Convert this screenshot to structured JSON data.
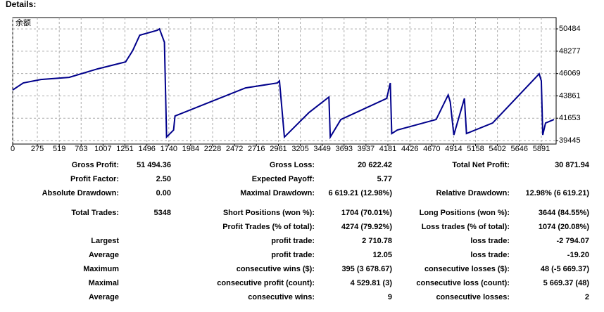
{
  "header": {
    "title": "Details:"
  },
  "chart_data": {
    "type": "line",
    "x": [
      0,
      118,
      315,
      629,
      944,
      1258,
      1337,
      1416,
      1612,
      1636,
      1691,
      1715,
      1793,
      1809,
      2202,
      2595,
      2949,
      2973,
      3028,
      3303,
      3524,
      3539,
      3657,
      4168,
      4208,
      4224,
      4286,
      4719,
      4853,
      4876,
      4916,
      5034,
      5057,
      5348,
      5867,
      5891,
      5907,
      5938,
      6032
    ],
    "series": [
      {
        "name": "余额",
        "color": "#00008b",
        "values": [
          44442,
          45136,
          45483,
          45691,
          46524,
          47217,
          48328,
          49855,
          50341,
          50480,
          49161,
          39792,
          40486,
          41874,
          43262,
          44650,
          45136,
          45344,
          39792,
          42221,
          43748,
          39792,
          41527,
          43609,
          45136,
          40139,
          40486,
          41527,
          43956,
          43262,
          40000,
          43609,
          40139,
          41180,
          46038,
          45344,
          40000,
          41180,
          41527
        ]
      }
    ],
    "xlim": [
      0,
      6056
    ],
    "ylim": [
      39100,
      51600
    ],
    "xticks": [
      0,
      275,
      519,
      763,
      1007,
      1251,
      1496,
      1740,
      1984,
      2228,
      2472,
      2716,
      2961,
      3205,
      3449,
      3693,
      3937,
      4181,
      4426,
      4670,
      4914,
      5158,
      5402,
      5646,
      5891
    ],
    "yticks": [
      39445,
      41653,
      43861,
      46069,
      48277,
      50484
    ],
    "grid": true
  },
  "table": {
    "rows": [
      [
        "Gross Profit:",
        "51 494.36",
        "Gross Loss:",
        "20 622.42",
        "Total Net Profit:",
        "30 871.94"
      ],
      [
        "Profit Factor:",
        "2.50",
        "Expected Payoff:",
        "5.77",
        null,
        null
      ],
      [
        "Absolute Drawdown:",
        "0.00",
        "Maximal Drawdown:",
        "6 619.21 (12.98%)",
        "Relative Drawdown:",
        "12.98% (6 619.21)"
      ],
      [
        "Total Trades:",
        "5348",
        "Short Positions (won %):",
        "1704 (70.01%)",
        "Long Positions (won %):",
        "3644 (84.55%)"
      ],
      [
        null,
        null,
        "Profit Trades (% of total):",
        "4274 (79.92%)",
        "Loss trades (% of total):",
        "1074 (20.08%)"
      ],
      [
        "Largest",
        null,
        "profit trade:",
        "2 710.78",
        "loss trade:",
        "-2 794.07"
      ],
      [
        "Average",
        null,
        "profit trade:",
        "12.05",
        "loss trade:",
        "-19.20"
      ],
      [
        "Maximum",
        null,
        "consecutive wins ($):",
        "395 (3 678.67)",
        "consecutive losses ($):",
        "48 (-5 669.37)"
      ],
      [
        "Maximal",
        null,
        "consecutive profit (count):",
        "4 529.81 (3)",
        "consecutive loss (count):",
        "5 669.37 (48)"
      ],
      [
        "Average",
        null,
        "consecutive wins:",
        "9",
        "consecutive losses:",
        "2"
      ]
    ]
  }
}
